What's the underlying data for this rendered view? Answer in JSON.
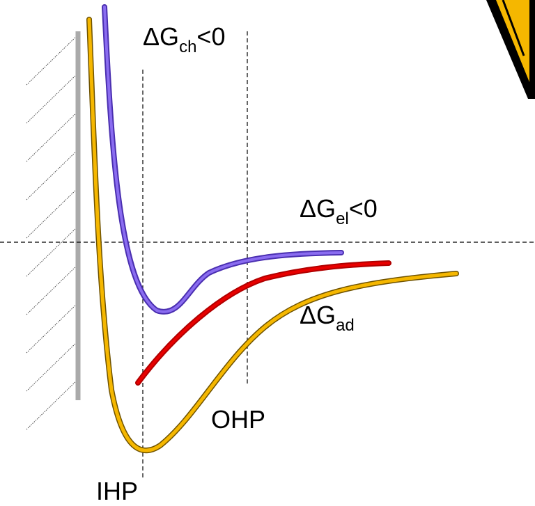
{
  "labels": {
    "dg_ch": {
      "main": "ΔG",
      "sub": "ch",
      "rest": "<0"
    },
    "dg_el": {
      "main": "ΔG",
      "sub": "el",
      "rest": "<0"
    },
    "dg_ad": {
      "main": "ΔG",
      "sub": "ad"
    },
    "ohp": "OHP",
    "ihp": "IHP"
  }
}
